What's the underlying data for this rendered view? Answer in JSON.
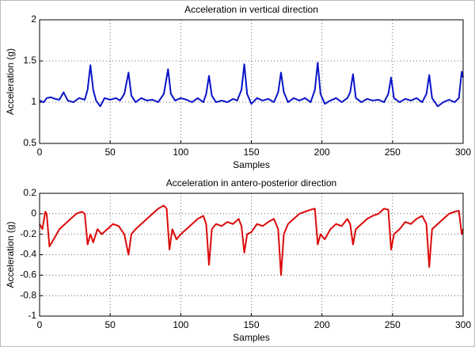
{
  "chart_data": [
    {
      "type": "line",
      "title": "Acceleration in vertical direction",
      "x_label": "Samples",
      "y_label": "Acceleration (g)",
      "color": "#0a14c8",
      "grid": true,
      "xlim": [
        0,
        300
      ],
      "xticks": [
        0,
        50,
        100,
        150,
        200,
        250,
        300
      ],
      "ylim": [
        0.5,
        2
      ],
      "yticks": [
        0.5,
        1,
        1.5,
        2
      ],
      "x": [
        0,
        3,
        5,
        8,
        11,
        14,
        17,
        20,
        24,
        28,
        32,
        34,
        36,
        38,
        40,
        43,
        46,
        50,
        54,
        57,
        60,
        63,
        65,
        68,
        72,
        76,
        80,
        84,
        88,
        91,
        93,
        96,
        100,
        104,
        108,
        112,
        116,
        118,
        120,
        122,
        125,
        129,
        133,
        137,
        140,
        143,
        145,
        147,
        150,
        154,
        158,
        162,
        166,
        169,
        171,
        173,
        176,
        180,
        184,
        188,
        192,
        195,
        197,
        199,
        202,
        206,
        210,
        214,
        218,
        220,
        222,
        224,
        228,
        232,
        236,
        240,
        244,
        247,
        249,
        251,
        255,
        259,
        263,
        267,
        271,
        274,
        276,
        278,
        282,
        286,
        290,
        294,
        297,
        299,
        300
      ],
      "values": [
        1.02,
        1.0,
        1.05,
        1.06,
        1.04,
        1.03,
        1.12,
        1.02,
        1.0,
        1.05,
        1.03,
        1.15,
        1.45,
        1.15,
        1.02,
        0.95,
        1.05,
        1.03,
        1.05,
        1.02,
        1.1,
        1.36,
        1.08,
        1.0,
        1.05,
        1.02,
        1.03,
        1.0,
        1.1,
        1.4,
        1.1,
        1.02,
        1.05,
        1.03,
        1.0,
        1.05,
        1.0,
        1.1,
        1.32,
        1.08,
        1.0,
        1.02,
        1.0,
        1.04,
        1.02,
        1.15,
        1.46,
        1.1,
        0.98,
        1.05,
        1.02,
        1.04,
        1.0,
        1.12,
        1.36,
        1.12,
        1.0,
        1.05,
        1.02,
        1.05,
        1.0,
        1.15,
        1.48,
        1.1,
        0.98,
        1.02,
        1.05,
        1.0,
        1.05,
        1.12,
        1.34,
        1.05,
        1.0,
        1.04,
        1.02,
        1.03,
        1.0,
        1.1,
        1.3,
        1.05,
        1.0,
        1.04,
        1.02,
        1.05,
        1.0,
        1.1,
        1.33,
        1.05,
        0.95,
        1.0,
        1.03,
        1.0,
        1.05,
        1.37,
        1.3
      ]
    },
    {
      "type": "line",
      "title": "Acceleration in antero-posterior direction",
      "x_label": "Samples",
      "y_label": "Acceleration (g)",
      "color": "#dc0a0a",
      "grid": true,
      "xlim": [
        0,
        300
      ],
      "xticks": [
        0,
        50,
        100,
        150,
        200,
        250,
        300
      ],
      "ylim": [
        -1,
        0.2
      ],
      "yticks": [
        -1,
        -0.8,
        -0.6,
        -0.4,
        -0.2,
        0,
        0.2
      ],
      "x": [
        0,
        2,
        4,
        5,
        7,
        10,
        14,
        18,
        22,
        26,
        30,
        32,
        34,
        36,
        38,
        41,
        44,
        48,
        52,
        56,
        60,
        63,
        65,
        68,
        72,
        76,
        80,
        84,
        88,
        90,
        92,
        94,
        97,
        100,
        104,
        108,
        112,
        116,
        118,
        120,
        122,
        125,
        129,
        133,
        137,
        141,
        143,
        145,
        147,
        150,
        154,
        158,
        162,
        166,
        169,
        171,
        173,
        176,
        180,
        184,
        188,
        192,
        195,
        197,
        199,
        202,
        206,
        210,
        214,
        218,
        220,
        222,
        224,
        228,
        232,
        236,
        240,
        244,
        247,
        249,
        251,
        255,
        259,
        263,
        267,
        271,
        274,
        276,
        278,
        282,
        286,
        290,
        294,
        297,
        299,
        300
      ],
      "values": [
        -0.1,
        -0.15,
        0.02,
        0.0,
        -0.32,
        -0.25,
        -0.15,
        -0.1,
        -0.05,
        0.0,
        0.02,
        0.0,
        -0.3,
        -0.2,
        -0.28,
        -0.15,
        -0.2,
        -0.15,
        -0.1,
        -0.12,
        -0.2,
        -0.4,
        -0.2,
        -0.15,
        -0.1,
        -0.05,
        0.0,
        0.05,
        0.08,
        0.05,
        -0.35,
        -0.15,
        -0.25,
        -0.2,
        -0.15,
        -0.1,
        -0.05,
        -0.02,
        -0.1,
        -0.5,
        -0.15,
        -0.1,
        -0.12,
        -0.08,
        -0.1,
        -0.05,
        -0.12,
        -0.38,
        -0.2,
        -0.18,
        -0.1,
        -0.12,
        -0.08,
        -0.05,
        -0.15,
        -0.6,
        -0.2,
        -0.1,
        -0.05,
        0.0,
        0.02,
        0.04,
        0.05,
        -0.3,
        -0.2,
        -0.25,
        -0.15,
        -0.1,
        -0.12,
        -0.05,
        -0.1,
        -0.3,
        -0.15,
        -0.1,
        -0.05,
        -0.02,
        0.0,
        0.05,
        0.04,
        -0.35,
        -0.2,
        -0.15,
        -0.08,
        -0.1,
        -0.05,
        -0.02,
        -0.1,
        -0.52,
        -0.15,
        -0.1,
        -0.05,
        0.0,
        0.02,
        0.03,
        -0.2,
        -0.15
      ]
    }
  ]
}
